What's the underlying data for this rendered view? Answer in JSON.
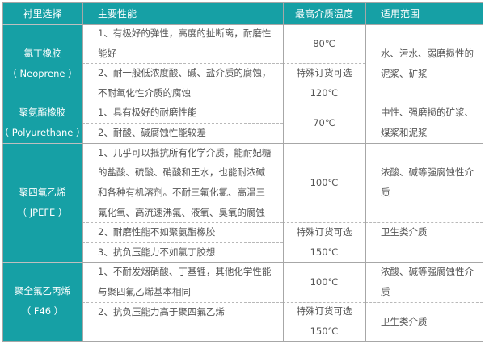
{
  "colors": {
    "header_bg": "#16a0a5",
    "header_text": "#ffffff",
    "body_text": "#555555",
    "border": "#a7a7a7"
  },
  "header": [
    "衬里选择",
    "主要性能",
    "最高介质温度",
    "适用范围"
  ],
  "rows": [
    {
      "lining": [
        "氯丁橡胶",
        "（ Neoprene ）"
      ],
      "properties": [
        [
          "1、有极好的弹性，高度的扯断离，耐磨性",
          "能好"
        ],
        [
          "2、耐一般低浓度酸、碱、盐介质的腐蚀，",
          "不耐氧化性介质的腐蚀"
        ]
      ],
      "temperature": [
        [
          "80℃"
        ],
        [
          "特殊订货可选",
          "120℃"
        ]
      ],
      "application": [
        [
          "水、污水、弱磨损性的",
          "泥浆、矿浆"
        ]
      ]
    },
    {
      "lining": [
        "聚氨酯橡胶",
        "（ Polyurethane ）"
      ],
      "properties": [
        [
          "1、具有极好的耐磨性能"
        ],
        [
          "2、耐酸、碱腐蚀性能较差"
        ]
      ],
      "temperature": [
        [
          "70℃"
        ]
      ],
      "application": [
        [
          "中性、强磨损的矿浆、",
          "煤浆和泥浆"
        ]
      ]
    },
    {
      "lining": [
        "聚四氟乙烯",
        "（ JPEFE ）"
      ],
      "properties": [
        [
          "1、几乎可以抵抗所有化学介质，能耐妃糖",
          "的盐酸、硫酸、硝酸和王水，也能耐浓碱",
          "和各种有机溶剂。不耐三氟化氯、高温三",
          "氟化氧、高流速沸氟、液氧、臭氧的腐蚀"
        ],
        [
          "2、耐磨性能不如聚氨酯橡胶"
        ],
        [
          "3、抗负压能力不如氯丁胶想"
        ]
      ],
      "temperature": [
        [
          "100℃"
        ],
        [
          "特殊订货可选",
          "150℃"
        ]
      ],
      "application": [
        [
          "浓酸、碱等强腐蚀性介",
          "质"
        ],
        [
          "卫生类介质"
        ]
      ]
    },
    {
      "lining": [
        "聚全氟乙丙烯",
        "（ F46 ）"
      ],
      "properties": [
        [
          "1、不耐发烟硝酸、丁基锂，其他化学性能",
          "与聚四氟乙烯基本相同"
        ],
        [
          "2、抗负压能力高于聚四氟乙烯"
        ]
      ],
      "temperature": [
        [
          "100℃"
        ],
        [
          "特殊订货可选",
          "150℃"
        ]
      ],
      "application": [
        [
          "浓酸、碱等强腐蚀性介",
          "质"
        ],
        [
          "卫生类介质"
        ]
      ]
    }
  ]
}
